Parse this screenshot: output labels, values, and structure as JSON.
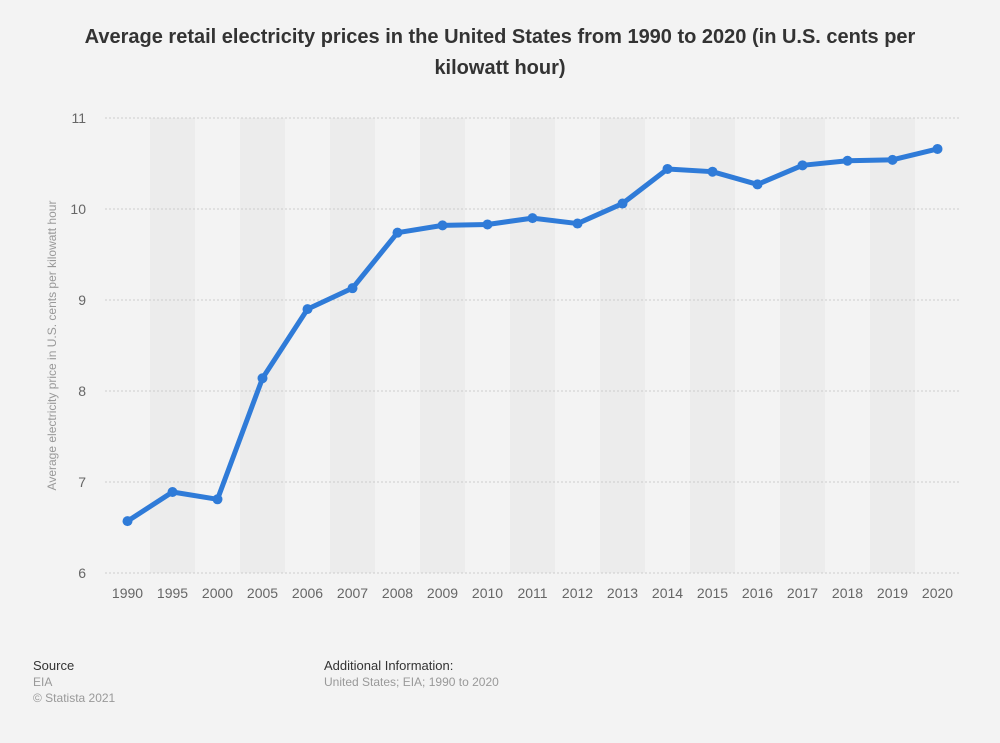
{
  "chart_data": {
    "type": "line",
    "title": "Average retail electricity prices in the United States from 1990 to 2020 (in U.S. cents per kilowatt hour)",
    "xlabel": "",
    "ylabel": "Average electricity price in U.S. cents per kilowatt hour",
    "categories": [
      "1990",
      "1995",
      "2000",
      "2005",
      "2006",
      "2007",
      "2008",
      "2009",
      "2010",
      "2011",
      "2012",
      "2013",
      "2014",
      "2015",
      "2016",
      "2017",
      "2018",
      "2019",
      "2020"
    ],
    "values": [
      6.57,
      6.89,
      6.81,
      8.14,
      8.9,
      9.13,
      9.74,
      9.82,
      9.83,
      9.9,
      9.84,
      10.06,
      10.44,
      10.41,
      10.27,
      10.48,
      10.53,
      10.54,
      10.66
    ],
    "ylim": [
      6,
      11
    ],
    "yticks": [
      "6",
      "7",
      "8",
      "9",
      "10",
      "11"
    ],
    "grid": true,
    "line_color": "#2f7bd8"
  },
  "footer": {
    "source_heading": "Source",
    "source_value": "EIA",
    "copyright": "© Statista 2021",
    "info_heading": "Additional Information:",
    "info_value": "United States; EIA; 1990 to 2020"
  }
}
